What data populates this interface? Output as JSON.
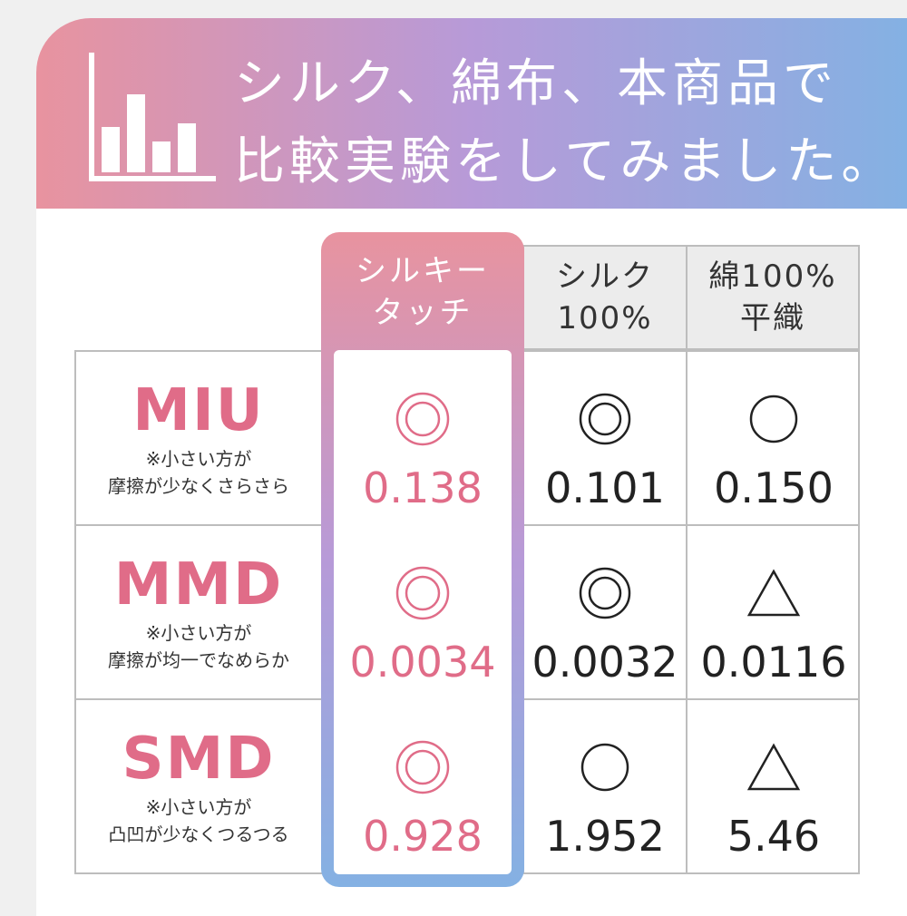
{
  "title": {
    "line1": "シルク、綿布、本商品で",
    "line2": "比較実験をしてみました。"
  },
  "icons": {
    "banner_icon": "bar-chart-icon"
  },
  "colors": {
    "gradient": [
      "#e8939f",
      "#b79ad8",
      "#84b1e3"
    ],
    "metric_accent": "#e06c88",
    "header_bg": "#ececec",
    "border": "#bdbdbd"
  },
  "columns": [
    {
      "line1": "シルキー",
      "line2": "タッチ"
    },
    {
      "line1": "シルク",
      "line2": "100%"
    },
    {
      "line1": "綿100%",
      "line2": "平織"
    }
  ],
  "rows": [
    {
      "metric": "MIU",
      "note1": "※小さい方が",
      "note2": "摩擦が少なくさらさら",
      "cells": [
        {
          "mark": "double-circle",
          "value": "0.138"
        },
        {
          "mark": "double-circle",
          "value": "0.101"
        },
        {
          "mark": "circle",
          "value": "0.150"
        }
      ]
    },
    {
      "metric": "MMD",
      "note1": "※小さい方が",
      "note2": "摩擦が均一でなめらか",
      "cells": [
        {
          "mark": "double-circle",
          "value": "0.0034"
        },
        {
          "mark": "double-circle",
          "value": "0.0032"
        },
        {
          "mark": "triangle",
          "value": "0.0116"
        }
      ]
    },
    {
      "metric": "SMD",
      "note1": "※小さい方が",
      "note2": "凸凹が少なくつるつる",
      "cells": [
        {
          "mark": "double-circle",
          "value": "0.928"
        },
        {
          "mark": "circle",
          "value": "1.952"
        },
        {
          "mark": "triangle",
          "value": "5.46"
        }
      ]
    }
  ]
}
